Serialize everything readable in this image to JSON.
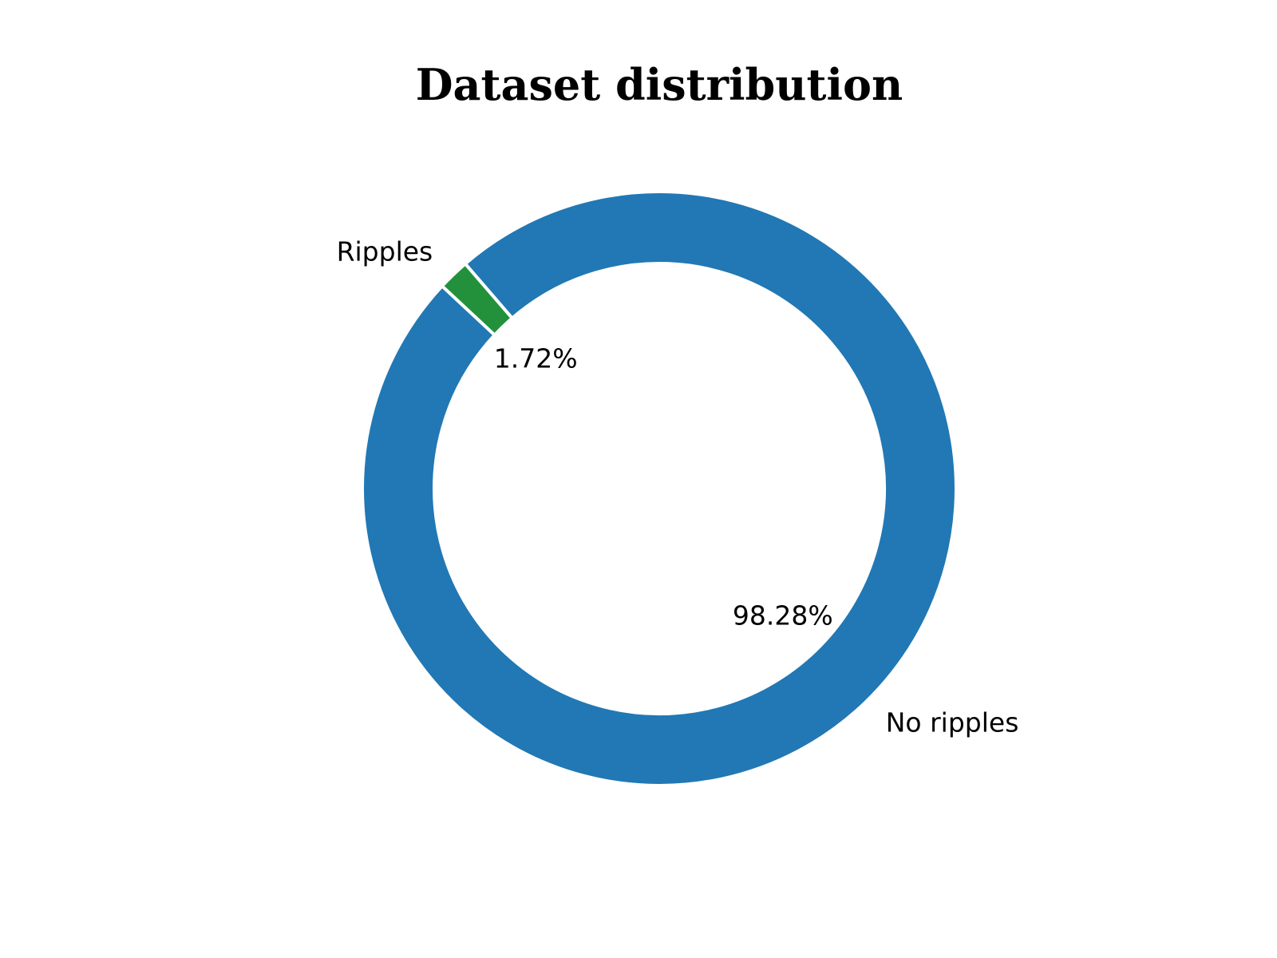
{
  "chart_data": {
    "type": "pie",
    "style": "donut",
    "title": "Dataset distribution",
    "labels": [
      "No ripples",
      "Ripples"
    ],
    "values": [
      98.28,
      1.72
    ],
    "percent_labels": [
      "98.28%",
      "1.72%"
    ],
    "colors": [
      "#2178b4",
      "#23913b"
    ],
    "edge_color": "#ffffff"
  }
}
